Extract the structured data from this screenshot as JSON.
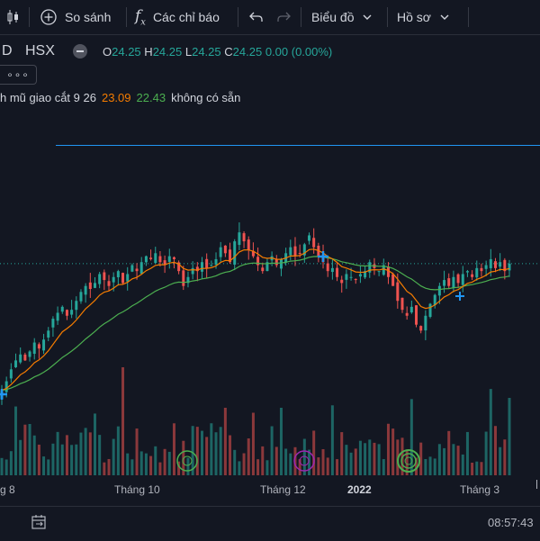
{
  "toolbar": {
    "compare_label": "So sánh",
    "indicators_label": "Các chỉ báo",
    "chart_menu_label": "Biểu đồ",
    "profile_menu_label": "Hồ sơ"
  },
  "legend": {
    "symbol_fragment": "D",
    "exchange": "HSX",
    "open_key": "O",
    "open": "24.25",
    "high_key": "H",
    "high": "24.25",
    "low_key": "L",
    "low": "24.25",
    "close_key": "C",
    "close": "24.25",
    "change": "0.00 (0.00%)",
    "more_label": "∘∘∘"
  },
  "indicator": {
    "name": "h mũ giao cắt 9 26",
    "fast_value": "23.09",
    "slow_value": "22.43",
    "extra": "không có sẵn"
  },
  "xaxis": {
    "labels": [
      "g 8",
      "Tháng 10",
      "Tháng 12",
      "2022",
      "Tháng 3"
    ]
  },
  "status": {
    "time": "08:57:43"
  },
  "colors": {
    "background": "#131722",
    "up": "#26a69a",
    "down": "#ef5350",
    "ema_fast": "#f57c00",
    "ema_slow": "#4caf50",
    "price_line": "#2196f3"
  },
  "chart_data": {
    "type": "candlestick",
    "price_close": [
      20.0,
      20.3,
      20.7,
      21.0,
      21.2,
      21.0,
      21.3,
      21.6,
      21.4,
      21.7,
      22.0,
      22.4,
      22.6,
      22.8,
      22.5,
      22.7,
      23.0,
      23.3,
      23.5,
      23.4,
      23.6,
      23.9,
      23.7,
      23.5,
      23.8,
      24.0,
      23.6,
      23.9,
      24.2,
      24.0,
      24.3,
      24.5,
      24.4,
      24.6,
      24.3,
      24.2,
      24.5,
      24.4,
      24.0,
      23.5,
      23.8,
      24.1,
      24.0,
      24.3,
      24.1,
      24.2,
      24.4,
      24.8,
      24.6,
      24.3,
      25.0,
      25.3,
      25.0,
      24.7,
      24.5,
      24.2,
      24.0,
      24.3,
      24.5,
      24.2,
      24.4,
      24.6,
      24.8,
      24.5,
      24.6,
      24.9,
      25.2,
      24.8,
      24.5,
      24.3,
      24.0,
      24.1,
      23.8,
      23.6,
      23.9,
      23.8,
      23.7,
      23.9,
      24.0,
      24.3,
      24.1,
      24.0,
      24.2,
      23.8,
      23.5,
      23.0,
      22.7,
      22.5,
      22.8,
      22.2,
      22.0,
      22.5,
      22.9,
      23.2,
      23.5,
      23.7,
      23.5,
      23.8,
      23.6,
      23.9,
      24.0,
      23.8,
      24.1,
      24.0,
      24.2,
      24.4,
      24.1,
      24.3,
      24.0,
      24.25
    ],
    "ema9_last": 23.09,
    "ema26_last": 22.43,
    "reference_price": 24.25
  }
}
